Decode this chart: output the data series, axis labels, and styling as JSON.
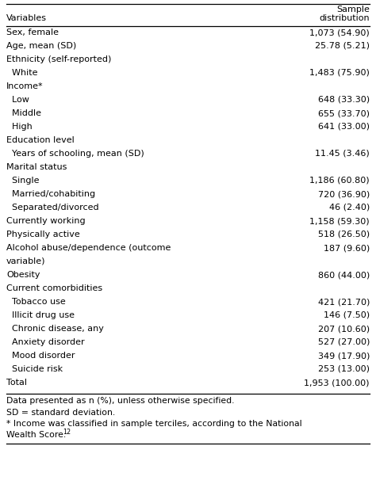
{
  "header_col1": "Variables",
  "header_col2_line1": "Sample",
  "header_col2_line2": "distribution",
  "rows": [
    {
      "label": "Sex, female",
      "value": "1,073 (54.90)",
      "indent": 0,
      "multiline": false
    },
    {
      "label": "Age, mean (SD)",
      "value": "25.78 (5.21)",
      "indent": 0,
      "multiline": false
    },
    {
      "label": "Ethnicity (self-reported)",
      "value": "",
      "indent": 0,
      "multiline": false
    },
    {
      "label": "  White",
      "value": "1,483 (75.90)",
      "indent": 0,
      "multiline": false
    },
    {
      "label": "Income*",
      "value": "",
      "indent": 0,
      "multiline": false
    },
    {
      "label": "  Low",
      "value": "648 (33.30)",
      "indent": 0,
      "multiline": false
    },
    {
      "label": "  Middle",
      "value": "655 (33.70)",
      "indent": 0,
      "multiline": false
    },
    {
      "label": "  High",
      "value": "641 (33.00)",
      "indent": 0,
      "multiline": false
    },
    {
      "label": "Education level",
      "value": "",
      "indent": 0,
      "multiline": false
    },
    {
      "label": "  Years of schooling, mean (SD)",
      "value": "11.45 (3.46)",
      "indent": 0,
      "multiline": false
    },
    {
      "label": "Marital status",
      "value": "",
      "indent": 0,
      "multiline": false
    },
    {
      "label": "  Single",
      "value": "1,186 (60.80)",
      "indent": 0,
      "multiline": false
    },
    {
      "label": "  Married/cohabiting",
      "value": "720 (36.90)",
      "indent": 0,
      "multiline": false
    },
    {
      "label": "  Separated/divorced",
      "value": "46 (2.40)",
      "indent": 0,
      "multiline": false
    },
    {
      "label": "Currently working",
      "value": "1,158 (59.30)",
      "indent": 0,
      "multiline": false
    },
    {
      "label": "Physically active",
      "value": "518 (26.50)",
      "indent": 0,
      "multiline": false
    },
    {
      "label": "Alcohol abuse/dependence (outcome",
      "value": "187 (9.60)",
      "indent": 0,
      "multiline": true
    },
    {
      "label": "variable)",
      "value": "",
      "indent": 0,
      "multiline": false
    },
    {
      "label": "Obesity",
      "value": "860 (44.00)",
      "indent": 0,
      "multiline": false
    },
    {
      "label": "Current comorbidities",
      "value": "",
      "indent": 0,
      "multiline": false
    },
    {
      "label": "  Tobacco use",
      "value": "421 (21.70)",
      "indent": 0,
      "multiline": false
    },
    {
      "label": "  Illicit drug use",
      "value": "146 (7.50)",
      "indent": 0,
      "multiline": false
    },
    {
      "label": "  Chronic disease, any",
      "value": "207 (10.60)",
      "indent": 0,
      "multiline": false
    },
    {
      "label": "  Anxiety disorder",
      "value": "527 (27.00)",
      "indent": 0,
      "multiline": false
    },
    {
      "label": "  Mood disorder",
      "value": "349 (17.90)",
      "indent": 0,
      "multiline": false
    },
    {
      "label": "  Suicide risk",
      "value": "253 (13.00)",
      "indent": 0,
      "multiline": false
    },
    {
      "label": "Total",
      "value": "1,953 (100.00)",
      "indent": 0,
      "multiline": false
    }
  ],
  "footnotes": [
    "Data presented as n (%), unless otherwise specified.",
    "SD = standard deviation.",
    "* Income was classified in sample terciles, according to the National",
    "Wealth Score.¹²"
  ],
  "bg_color": "#ffffff",
  "text_color": "#000000",
  "font_size": 8.0,
  "footnote_font_size": 7.8
}
